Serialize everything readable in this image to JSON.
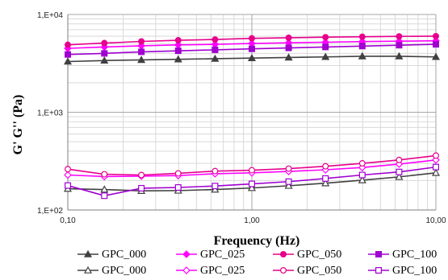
{
  "chart_data": {
    "type": "line",
    "title": "",
    "xlabel": "Frequency (Hz)",
    "ylabel": "G' G'' (Pa)",
    "x_scale": "log",
    "y_scale": "log",
    "xlim": [
      0.1,
      10
    ],
    "ylim": [
      100,
      10000
    ],
    "x_ticks": [
      {
        "value": 0.1,
        "label": "0,10"
      },
      {
        "value": 1,
        "label": "1,00"
      },
      {
        "value": 10,
        "label": "10,00"
      }
    ],
    "y_ticks": [
      {
        "value": 100,
        "label": "1,E+02"
      },
      {
        "value": 1000,
        "label": "1,E+03"
      },
      {
        "value": 10000,
        "label": "1,E+04"
      }
    ],
    "grid": "major and minor, both axes",
    "legend_position": "bottom",
    "x": [
      0.1,
      0.158,
      0.251,
      0.398,
      0.631,
      1.0,
      1.585,
      2.512,
      3.981,
      6.31,
      10.0
    ],
    "series": [
      {
        "name": "GPC_000",
        "color": "#404040",
        "marker": "triangle",
        "filled": true,
        "values": [
          3300,
          3380,
          3430,
          3480,
          3530,
          3580,
          3630,
          3680,
          3740,
          3740,
          3680
        ]
      },
      {
        "name": "GPC_025",
        "color": "#ff00ff",
        "marker": "diamond",
        "filled": true,
        "values": [
          4500,
          4650,
          4780,
          4880,
          4950,
          5050,
          5130,
          5200,
          5280,
          5330,
          5380
        ]
      },
      {
        "name": "GPC_050",
        "color": "#e6008c",
        "marker": "circle",
        "filled": true,
        "values": [
          4900,
          5100,
          5300,
          5450,
          5550,
          5700,
          5780,
          5860,
          5920,
          5970,
          6000
        ]
      },
      {
        "name": "GPC_100",
        "color": "#a000d0",
        "marker": "square",
        "filled": true,
        "values": [
          3900,
          4000,
          4150,
          4250,
          4350,
          4450,
          4550,
          4650,
          4750,
          4850,
          4950
        ]
      },
      {
        "name": "GPC_000",
        "color": "#404040",
        "marker": "triangle",
        "filled": false,
        "values": [
          165,
          162,
          157,
          158,
          162,
          168,
          177,
          188,
          202,
          218,
          240
        ]
      },
      {
        "name": "GPC_025",
        "color": "#ff00ff",
        "marker": "diamond",
        "filled": false,
        "values": [
          228,
          220,
          222,
          225,
          235,
          240,
          248,
          258,
          272,
          295,
          325
        ]
      },
      {
        "name": "GPC_050",
        "color": "#e6008c",
        "marker": "circle",
        "filled": false,
        "values": [
          262,
          232,
          228,
          237,
          250,
          255,
          265,
          280,
          300,
          325,
          360
        ]
      },
      {
        "name": "GPC_100",
        "color": "#a000d0",
        "marker": "square",
        "filled": false,
        "values": [
          178,
          140,
          167,
          170,
          176,
          185,
          195,
          210,
          228,
          245,
          275
        ]
      }
    ]
  }
}
